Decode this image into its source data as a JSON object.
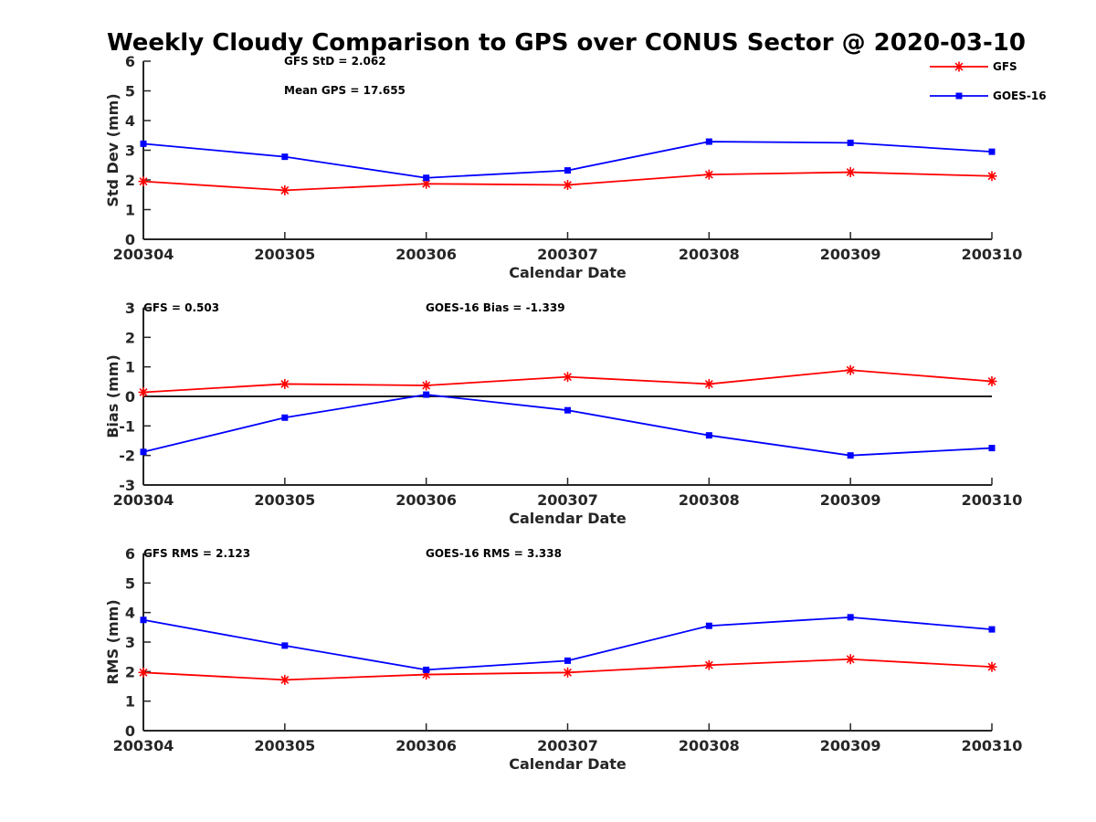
{
  "figure_title": "Weekly Cloudy Comparison to GPS over CONUS Sector @ 2020-03-10",
  "legend": [
    {
      "name": "GFS",
      "color": "#ff0000",
      "marker": "asterisk"
    },
    {
      "name": "GOES-16",
      "color": "#0000ff",
      "marker": "square"
    }
  ],
  "chart_data": [
    {
      "type": "line",
      "categories": [
        "200304",
        "200305",
        "200306",
        "200307",
        "200308",
        "200309",
        "200310"
      ],
      "xlabel": "Calendar Date",
      "ylabel": "Std Dev (mm)",
      "ylim": [
        0,
        6
      ],
      "yticks": [
        0,
        1,
        2,
        3,
        4,
        5,
        6
      ],
      "zero_line": false,
      "annotations": [
        {
          "id": "gfs_std",
          "text": "GFS StD = 2.062"
        },
        {
          "id": "mean_gps",
          "text": "Mean GPS = 17.655"
        }
      ],
      "series": [
        {
          "name": "GFS",
          "values": [
            1.95,
            1.65,
            1.87,
            1.83,
            2.18,
            2.26,
            2.13
          ]
        },
        {
          "name": "GOES-16",
          "values": [
            3.22,
            2.78,
            2.07,
            2.32,
            3.29,
            3.25,
            2.95
          ]
        }
      ]
    },
    {
      "type": "line",
      "categories": [
        "200304",
        "200305",
        "200306",
        "200307",
        "200308",
        "200309",
        "200310"
      ],
      "xlabel": "Calendar Date",
      "ylabel": "Bias (mm)",
      "ylim": [
        -3,
        3
      ],
      "yticks": [
        -3,
        -2,
        -1,
        0,
        1,
        2,
        3
      ],
      "zero_line": true,
      "annotations": [
        {
          "id": "gfs_bias",
          "text": "GFS = 0.503"
        },
        {
          "id": "goes_bias",
          "text": "GOES-16 Bias  = -1.339"
        }
      ],
      "series": [
        {
          "name": "GFS",
          "values": [
            0.14,
            0.42,
            0.37,
            0.66,
            0.42,
            0.89,
            0.51
          ]
        },
        {
          "name": "GOES-16",
          "values": [
            -1.88,
            -0.72,
            0.06,
            -0.47,
            -1.32,
            -2.0,
            -1.75
          ]
        }
      ]
    },
    {
      "type": "line",
      "categories": [
        "200304",
        "200305",
        "200306",
        "200307",
        "200308",
        "200309",
        "200310"
      ],
      "xlabel": "Calendar Date",
      "ylabel": "RMS (mm)",
      "ylim": [
        0,
        6
      ],
      "yticks": [
        0,
        1,
        2,
        3,
        4,
        5,
        6
      ],
      "zero_line": false,
      "annotations": [
        {
          "id": "gfs_rms",
          "text": "GFS RMS = 2.123"
        },
        {
          "id": "goes_rms",
          "text": "GOES-16 RMS = 3.338"
        }
      ],
      "series": [
        {
          "name": "GFS",
          "values": [
            1.97,
            1.72,
            1.9,
            1.97,
            2.22,
            2.42,
            2.16
          ]
        },
        {
          "name": "GOES-16",
          "values": [
            3.75,
            2.88,
            2.06,
            2.37,
            3.55,
            3.84,
            3.43
          ]
        }
      ]
    }
  ]
}
